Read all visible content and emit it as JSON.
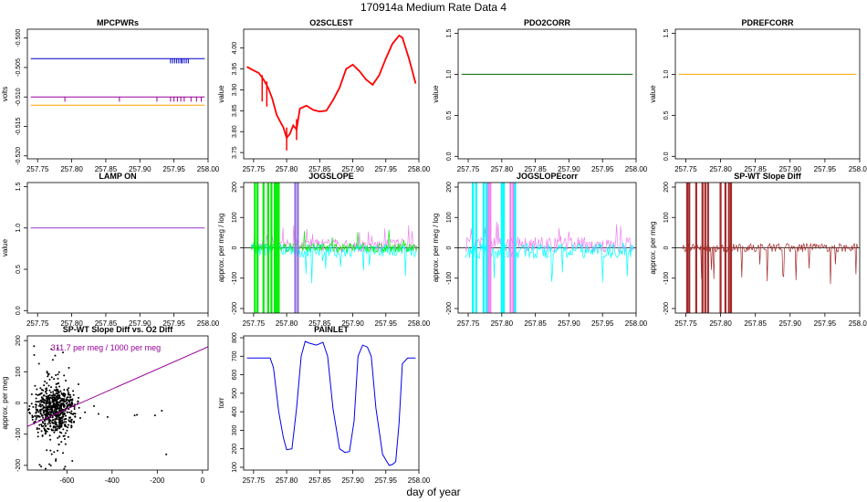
{
  "figure": {
    "title": "170914a   Medium Rate Data 4",
    "xlabel": "day of year"
  },
  "chart_data": [
    {
      "type": "line",
      "title": "MPCPWRs",
      "ylabel": "volts",
      "xlim": [
        257.735,
        258.0
      ],
      "ylim": [
        -0.5205,
        -0.4985
      ],
      "xticks": [
        257.75,
        257.8,
        257.85,
        257.9,
        257.95,
        258.0
      ],
      "xtick_labels": [
        "257.75",
        "257.80",
        "257.85",
        "257.90",
        "257.95",
        "258.00"
      ],
      "yticks": [
        -0.52,
        -0.515,
        -0.51,
        -0.505,
        -0.5
      ],
      "ytick_labels": [
        "-0.520",
        "-0.515",
        "-0.510",
        "-0.505",
        "-0.500"
      ],
      "series": [
        {
          "color": "#0000cc",
          "x": [
            257.74,
            257.995
          ],
          "y": [
            -0.5035,
            -0.5035
          ],
          "spikes": {
            "x": [
              257.945,
              257.948,
              257.951,
              257.954,
              257.957,
              257.96,
              257.962,
              257.965,
              257.968,
              257.971
            ],
            "y0": -0.5035,
            "y1": -0.5043
          }
        },
        {
          "color": "#990099",
          "x": [
            257.74,
            257.995
          ],
          "y": [
            -0.51,
            -0.51
          ],
          "spikes": {
            "x": [
              257.79,
              257.87,
              257.925,
              257.945,
              257.95,
              257.955,
              257.96,
              257.965,
              257.975,
              257.983,
              257.99
            ],
            "y0": -0.51,
            "y1": -0.5108
          }
        },
        {
          "color": "#ffa500",
          "x": [
            257.74,
            257.995
          ],
          "y": [
            -0.5114,
            -0.5114
          ]
        }
      ]
    },
    {
      "type": "line",
      "title": "O2SCLEST",
      "ylabel": "value",
      "xlim": [
        257.735,
        258.0
      ],
      "ylim": [
        3.735,
        4.045
      ],
      "xticks": [
        257.75,
        257.8,
        257.85,
        257.9,
        257.95,
        258.0
      ],
      "xtick_labels": [
        "257.75",
        "257.80",
        "257.85",
        "257.90",
        "257.95",
        "258.00"
      ],
      "yticks": [
        3.75,
        3.8,
        3.85,
        3.9,
        3.95,
        4.0
      ],
      "ytick_labels": [
        "3.75",
        "3.80",
        "3.85",
        "3.90",
        "3.95",
        "4.00"
      ],
      "series": [
        {
          "color": "#ff0000",
          "x": [
            257.74,
            257.748,
            257.758,
            257.765,
            257.772,
            257.778,
            257.785,
            257.79,
            257.795,
            257.8,
            257.805,
            257.81,
            257.815,
            257.82,
            257.83,
            257.84,
            257.85,
            257.86,
            257.87,
            257.88,
            257.89,
            257.9,
            257.91,
            257.92,
            257.93,
            257.94,
            257.95,
            257.96,
            257.97,
            257.975,
            257.98,
            257.985,
            257.99,
            257.995
          ],
          "y": [
            3.955,
            3.948,
            3.94,
            3.925,
            3.905,
            3.88,
            3.84,
            3.825,
            3.81,
            3.785,
            3.795,
            3.815,
            3.805,
            3.855,
            3.862,
            3.852,
            3.848,
            3.85,
            3.875,
            3.905,
            3.95,
            3.96,
            3.945,
            3.925,
            3.912,
            3.935,
            3.975,
            4.01,
            4.03,
            4.025,
            4.0,
            3.975,
            3.945,
            3.915
          ],
          "dips": [
            {
              "x": 257.763,
              "y0": 3.935,
              "y1": 3.872
            },
            {
              "x": 257.77,
              "y0": 3.92,
              "y1": 3.86
            },
            {
              "x": 257.8,
              "y0": 3.81,
              "y1": 3.755
            },
            {
              "x": 257.815,
              "y0": 3.83,
              "y1": 3.78
            }
          ]
        }
      ]
    },
    {
      "type": "line",
      "title": "PDO2CORR",
      "ylabel": "value",
      "xlim": [
        257.735,
        258.0
      ],
      "ylim": [
        -0.03,
        1.55
      ],
      "xticks": [
        257.75,
        257.8,
        257.85,
        257.9,
        257.95,
        258.0
      ],
      "xtick_labels": [
        "257.75",
        "257.80",
        "257.85",
        "257.90",
        "257.95",
        "258.00"
      ],
      "yticks": [
        0.0,
        0.5,
        1.0,
        1.5
      ],
      "ytick_labels": [
        "0.0",
        "0.5",
        "1.0",
        "1.5"
      ],
      "series": [
        {
          "color": "#006400",
          "x": [
            257.74,
            257.995
          ],
          "y": [
            1.0,
            1.0
          ]
        }
      ]
    },
    {
      "type": "line",
      "title": "PDREFCORR",
      "ylabel": "value",
      "xlim": [
        257.735,
        258.0
      ],
      "ylim": [
        -0.03,
        1.55
      ],
      "xticks": [
        257.75,
        257.8,
        257.85,
        257.9,
        257.95,
        258.0
      ],
      "xtick_labels": [
        "257.75",
        "257.80",
        "257.85",
        "257.90",
        "257.95",
        "258.00"
      ],
      "yticks": [
        0.0,
        0.5,
        1.0,
        1.5
      ],
      "ytick_labels": [
        "0.0",
        "0.5",
        "1.0",
        "1.5"
      ],
      "series": [
        {
          "color": "#ffa500",
          "x": [
            257.74,
            257.995
          ],
          "y": [
            1.0,
            1.0
          ]
        }
      ]
    },
    {
      "type": "line",
      "title": "LAMP ON",
      "ylabel": "value",
      "xlim": [
        257.735,
        258.0
      ],
      "ylim": [
        -0.03,
        1.55
      ],
      "xticks": [
        257.75,
        257.8,
        257.85,
        257.9,
        257.95,
        258.0
      ],
      "xtick_labels": [
        "257.75",
        "257.80",
        "257.85",
        "257.90",
        "257.95",
        "258.00"
      ],
      "yticks": [
        0.0,
        0.5,
        1.0,
        1.5
      ],
      "ytick_labels": [
        "0.0",
        "0.5",
        "1.0",
        "1.5"
      ],
      "series": [
        {
          "color": "#9933cc",
          "x": [
            257.74,
            257.995
          ],
          "y": [
            1.0,
            1.0
          ]
        }
      ]
    },
    {
      "type": "line",
      "title": "JOGSLOPE",
      "ylabel": "approx. per meg / log",
      "xlim": [
        257.735,
        258.0
      ],
      "ylim": [
        -215,
        215
      ],
      "xticks": [
        257.75,
        257.8,
        257.85,
        257.9,
        257.95,
        258.0
      ],
      "xtick_labels": [
        "257.75",
        "257.80",
        "257.85",
        "257.90",
        "257.95",
        "258.00"
      ],
      "yticks": [
        -200,
        -100,
        0,
        100,
        200
      ],
      "ytick_labels": [
        "-200",
        "-100",
        "0",
        "100",
        "200"
      ],
      "noise": [
        {
          "color": "#ee82ee",
          "center": 8,
          "amp": 22,
          "spike": 70,
          "seed": 7
        },
        {
          "color": "#00ffff",
          "center": -8,
          "amp": 22,
          "spike": -110,
          "seed": 11
        },
        {
          "color": "#00ee00",
          "center": 0,
          "amp": 15,
          "spike": 60,
          "seed": 3
        }
      ],
      "bands": [
        {
          "color": "#00ee00",
          "x": [
            257.752,
            257.756,
            257.765,
            257.772,
            257.777,
            257.782,
            257.785,
            257.788
          ]
        },
        {
          "color": "#9370db",
          "x": [
            257.813,
            257.817
          ]
        }
      ],
      "zero_line": true
    },
    {
      "type": "line",
      "title": "JOGSLOPEcorr",
      "ylabel": "approx. per meg / log",
      "xlim": [
        257.735,
        258.0
      ],
      "ylim": [
        -215,
        215
      ],
      "xticks": [
        257.75,
        257.8,
        257.85,
        257.9,
        257.95,
        258.0
      ],
      "xtick_labels": [
        "257.75",
        "257.80",
        "257.85",
        "257.90",
        "257.95",
        "258.00"
      ],
      "yticks": [
        -200,
        -100,
        0,
        100,
        200
      ],
      "ytick_labels": [
        "-200",
        "-100",
        "0",
        "100",
        "200"
      ],
      "noise": [
        {
          "color": "#ee82ee",
          "center": 10,
          "amp": 25,
          "spike": 80,
          "seed": 5
        },
        {
          "color": "#00ffff",
          "center": -10,
          "amp": 25,
          "spike": -120,
          "seed": 13
        }
      ],
      "bands": [
        {
          "color": "#00ffff",
          "x": [
            257.757,
            257.762,
            257.773,
            257.777,
            257.8,
            257.803,
            257.82
          ]
        },
        {
          "color": "#ee82ee",
          "x": [
            257.78,
            257.783,
            257.813,
            257.817
          ]
        }
      ],
      "zero_line": true
    },
    {
      "type": "line",
      "title": "SP-WT Slope Diff",
      "ylabel": "approx. per meg",
      "xlim": [
        257.735,
        258.0
      ],
      "ylim": [
        -215,
        215
      ],
      "xticks": [
        257.75,
        257.8,
        257.85,
        257.9,
        257.95,
        258.0
      ],
      "xtick_labels": [
        "257.75",
        "257.80",
        "257.85",
        "257.90",
        "257.95",
        "258.00"
      ],
      "yticks": [
        -200,
        -100,
        0,
        100,
        200
      ],
      "ytick_labels": [
        "-200",
        "-100",
        "0",
        "100",
        "200"
      ],
      "noise": [
        {
          "color": "#a52a2a",
          "center": 0,
          "amp": 14,
          "spike": -120,
          "seed": 17
        }
      ],
      "bands": [
        {
          "color": "#a52a2a",
          "x": [
            257.752,
            257.755,
            257.765,
            257.774,
            257.778,
            257.782,
            257.8,
            257.807,
            257.812,
            257.815
          ]
        }
      ],
      "zero_line": true
    },
    {
      "type": "scatter",
      "title": "SP-WT Slope Diff vs. O2 Diff",
      "ylabel": "approx. per meg",
      "annotation": "311.7 per meg / 1000 per meg",
      "annotation_color": "#990099",
      "xlim": [
        -775,
        25
      ],
      "ylim": [
        -215,
        215
      ],
      "xticks": [
        -600,
        -400,
        -200,
        0
      ],
      "xtick_labels": [
        "-600",
        "-400",
        "-200",
        "0"
      ],
      "yticks": [
        -200,
        -100,
        0,
        100,
        200
      ],
      "ytick_labels": [
        "-200",
        "-100",
        "0",
        "100",
        "200"
      ],
      "cluster": {
        "x_center": -660,
        "x_spread": 45,
        "y_center": -20,
        "y_spread": 35,
        "n": 700,
        "seed": 21
      },
      "outliers": {
        "x": [
          -520,
          -480,
          -460,
          -420,
          -300,
          -290,
          -210,
          -180,
          -160
        ],
        "y": [
          -30,
          -10,
          -35,
          -45,
          -40,
          -38,
          -40,
          -25,
          -165
        ]
      },
      "fit": {
        "color": "#990099",
        "x": [
          -775,
          25
        ],
        "y": [
          -75,
          180
        ]
      }
    },
    {
      "type": "line",
      "title": "PAINLET",
      "ylabel": "torr",
      "xlim": [
        257.735,
        258.0
      ],
      "ylim": [
        85,
        810
      ],
      "xticks": [
        257.75,
        257.8,
        257.85,
        257.9,
        257.95,
        258.0
      ],
      "xtick_labels": [
        "257.75",
        "257.80",
        "257.85",
        "257.90",
        "257.95",
        "258.00"
      ],
      "yticks": [
        100,
        200,
        300,
        400,
        500,
        600,
        700,
        800
      ],
      "ytick_labels": [
        "100",
        "200",
        "300",
        "400",
        "500",
        "600",
        "700",
        "800"
      ],
      "series": [
        {
          "color": "#0000ee",
          "x": [
            257.74,
            257.775,
            257.78,
            257.788,
            257.795,
            257.8,
            257.808,
            257.815,
            257.822,
            257.828,
            257.835,
            257.845,
            257.855,
            257.862,
            257.87,
            257.88,
            257.888,
            257.895,
            257.902,
            257.908,
            257.915,
            257.922,
            257.928,
            257.935,
            257.945,
            257.955,
            257.96,
            257.965,
            257.97,
            257.975,
            257.983,
            257.995
          ],
          "y": [
            690,
            690,
            640,
            400,
            260,
            195,
            200,
            420,
            700,
            780,
            770,
            760,
            775,
            700,
            420,
            200,
            180,
            185,
            350,
            700,
            760,
            750,
            700,
            420,
            170,
            110,
            115,
            130,
            340,
            660,
            690,
            690
          ]
        }
      ]
    }
  ]
}
